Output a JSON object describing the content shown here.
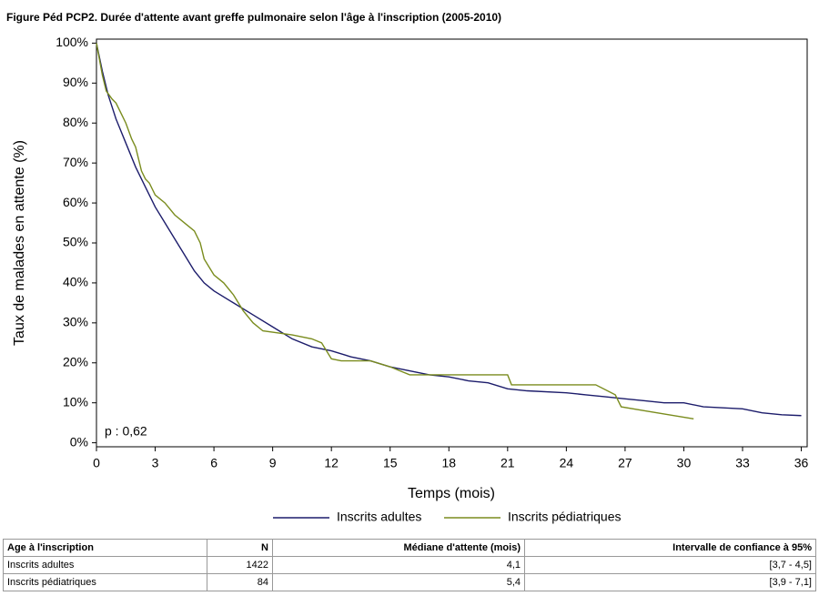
{
  "chart_data": {
    "type": "line",
    "title": "Figure Péd PCP2. Durée d'attente avant greffe pulmonaire selon l'âge à l'inscription (2005-2010)",
    "x_label": "Temps (mois)",
    "y_label": "Taux de malades en attente (%)",
    "annotation": "p : 0,62",
    "xlim": [
      0,
      36.3
    ],
    "ylim": [
      -1,
      101
    ],
    "xticks": [
      0,
      3,
      6,
      9,
      12,
      15,
      18,
      21,
      24,
      27,
      30,
      33,
      36
    ],
    "yticks": [
      {
        "value": 0,
        "label": "0%"
      },
      {
        "value": 10,
        "label": "10%"
      },
      {
        "value": 20,
        "label": "20%"
      },
      {
        "value": 30,
        "label": "30%"
      },
      {
        "value": 40,
        "label": "40%"
      },
      {
        "value": 50,
        "label": "50%"
      },
      {
        "value": 60,
        "label": "60%"
      },
      {
        "value": 70,
        "label": "70%"
      },
      {
        "value": 80,
        "label": "80%"
      },
      {
        "value": 90,
        "label": "90%"
      },
      {
        "value": 100,
        "label": "100%"
      }
    ],
    "series": [
      {
        "name": "Inscrits adultes",
        "color": "#1c1c6b",
        "x": [
          0,
          0.3,
          0.6,
          1,
          1.5,
          2,
          2.5,
          3,
          3.5,
          4,
          4.5,
          5,
          5.5,
          6,
          7,
          8,
          9,
          10,
          11,
          12,
          13,
          14,
          15,
          16,
          17,
          18,
          19,
          20,
          21,
          22,
          24,
          25,
          26,
          27,
          28,
          29,
          30,
          31,
          33,
          34,
          35,
          36
        ],
        "values": [
          100,
          93,
          87,
          81,
          75,
          69,
          64,
          59,
          55,
          51,
          47,
          43,
          40,
          38,
          35,
          32,
          29,
          26,
          24,
          23,
          21.5,
          20.5,
          19,
          18,
          17,
          16.5,
          15.5,
          15,
          13.5,
          13,
          12.5,
          12,
          11.5,
          11,
          10.5,
          10,
          10,
          9,
          8.5,
          7.5,
          7,
          6.8
        ]
      },
      {
        "name": "Inscrits pédiatriques",
        "color": "#7a8c1e",
        "x": [
          0,
          0.3,
          0.5,
          0.8,
          1,
          1.3,
          1.5,
          1.8,
          2,
          2.3,
          2.5,
          2.7,
          3,
          3.5,
          4,
          4.5,
          5,
          5.3,
          5.5,
          6,
          6.5,
          7,
          7.5,
          8,
          8.5,
          10,
          11,
          11.5,
          12,
          12.5,
          13,
          14,
          15,
          16,
          16.5,
          17,
          21,
          21.2,
          25.5,
          26.5,
          26.8,
          28,
          30.5
        ],
        "values": [
          100,
          92,
          88,
          86,
          85,
          82,
          80,
          76,
          74,
          68,
          66,
          65,
          62,
          60,
          57,
          55,
          53,
          50,
          46,
          42,
          40,
          37,
          33,
          30,
          28,
          27,
          26,
          25,
          21,
          20.5,
          20.5,
          20.5,
          19,
          17,
          17,
          17,
          17,
          14.5,
          14.5,
          12,
          9,
          8,
          6
        ]
      }
    ]
  },
  "table": {
    "header": [
      "Age à l'inscription",
      "N",
      "Médiane d'attente (mois)",
      "Intervalle de confiance à 95%"
    ],
    "rows": [
      [
        "Inscrits adultes",
        "1422",
        "4,1",
        "[3,7 - 4,5]"
      ],
      [
        "Inscrits pédiatriques",
        "84",
        "5,4",
        "[3,9 - 7,1]"
      ]
    ]
  }
}
